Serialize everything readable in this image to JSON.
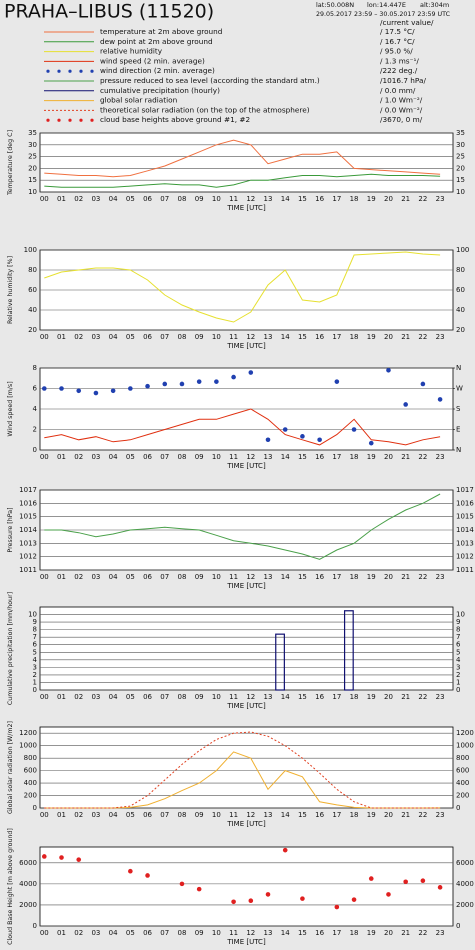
{
  "header": {
    "title": "PRAHA–LIBUS (11520)",
    "lat": "lat:50.008N",
    "lon": "lon:14.447E",
    "alt": "alt:304m",
    "period": "29.05.2017 23:59 – 30.05.2017 23:59 UTC",
    "current_header": "/current value/"
  },
  "chart_data": [
    {
      "type": "line",
      "ylabel": "Temperature [deg C]",
      "xlabel": "TIME [UTC]",
      "categories": [
        "00",
        "01",
        "02",
        "03",
        "04",
        "05",
        "06",
        "07",
        "08",
        "09",
        "10",
        "11",
        "12",
        "13",
        "14",
        "15",
        "16",
        "17",
        "18",
        "19",
        "20",
        "21",
        "22",
        "23"
      ],
      "ylim": [
        10,
        35
      ],
      "yticks": [
        10,
        15,
        20,
        25,
        30,
        35
      ],
      "grid": true,
      "series": [
        {
          "name": "temperature at 2m above ground",
          "color": "#f07040",
          "current": {
            "value": 17.5,
            "label": "/ 17.5 °C/"
          },
          "values": [
            18,
            17.5,
            17,
            17,
            16.5,
            17,
            19,
            21,
            24,
            27,
            30,
            32,
            30,
            22,
            24,
            26,
            26,
            27,
            20,
            19.5,
            19,
            18.5,
            18,
            17.5
          ]
        },
        {
          "name": "dew point at 2m above ground",
          "color": "#3a9a3a",
          "current": {
            "value": 16.7,
            "label": "/ 16.7 °C/"
          },
          "values": [
            12.5,
            12,
            12,
            12,
            12,
            12.5,
            13,
            13.5,
            13,
            13,
            12,
            13,
            15,
            15,
            16,
            17,
            17,
            16.5,
            17,
            17.5,
            17,
            17,
            17,
            16.7
          ]
        }
      ]
    },
    {
      "type": "line",
      "ylabel": "Relative humidity [%]",
      "xlabel": "TIME [UTC]",
      "categories": [
        "00",
        "01",
        "02",
        "03",
        "04",
        "05",
        "06",
        "07",
        "08",
        "09",
        "10",
        "11",
        "12",
        "13",
        "14",
        "15",
        "16",
        "17",
        "18",
        "19",
        "20",
        "21",
        "22",
        "23"
      ],
      "ylim": [
        20,
        100
      ],
      "yticks": [
        20,
        40,
        60,
        80,
        100
      ],
      "grid": true,
      "series": [
        {
          "name": "relative humidity",
          "color": "#e6e030",
          "current": {
            "value": 95.0,
            "label": "/ 95.0 %/"
          },
          "values": [
            72,
            78,
            80,
            82,
            82,
            80,
            70,
            55,
            45,
            38,
            32,
            28,
            38,
            65,
            80,
            50,
            48,
            55,
            95,
            96,
            97,
            98,
            96,
            95
          ]
        }
      ]
    },
    {
      "type": "line",
      "ylabel": "Wind speed [m/s]",
      "xlabel": "TIME [UTC]",
      "categories": [
        "00",
        "01",
        "02",
        "03",
        "04",
        "05",
        "06",
        "07",
        "08",
        "09",
        "10",
        "11",
        "12",
        "13",
        "14",
        "15",
        "16",
        "17",
        "18",
        "19",
        "20",
        "21",
        "22",
        "23"
      ],
      "ylim": [
        0,
        8
      ],
      "yticks": [
        0,
        2,
        4,
        6,
        8
      ],
      "grid": true,
      "y2lim": [
        0,
        360
      ],
      "y2ticks": [
        {
          "value": 0,
          "label": "N"
        },
        {
          "value": 90,
          "label": "E"
        },
        {
          "value": 180,
          "label": "S"
        },
        {
          "value": 270,
          "label": "W"
        },
        {
          "value": 360,
          "label": "N"
        }
      ],
      "series": [
        {
          "name": "wind speed (2 min. average)",
          "color": "#e03010",
          "current": {
            "value": 1.3,
            "label": "/ 1.3 ms⁻¹/"
          },
          "values": [
            1.2,
            1.5,
            1,
            1.3,
            0.8,
            1,
            1.5,
            2,
            2.5,
            3,
            3,
            3.5,
            4,
            3,
            1.5,
            1,
            0.5,
            1.5,
            3,
            1,
            0.8,
            0.5,
            1,
            1.3
          ]
        },
        {
          "name": "wind direction (2 min. average)",
          "color": "#2040b0",
          "axis": "y2",
          "marker": "dot",
          "current": {
            "value": 222,
            "label": "/222 deg./"
          },
          "values": [
            270,
            270,
            260,
            250,
            260,
            270,
            280,
            290,
            290,
            300,
            300,
            320,
            340,
            45,
            90,
            60,
            45,
            300,
            90,
            30,
            350,
            200,
            290,
            222
          ]
        }
      ]
    },
    {
      "type": "line",
      "ylabel": "Pressure [hPa]",
      "xlabel": "TIME [UTC]",
      "categories": [
        "00",
        "01",
        "02",
        "03",
        "04",
        "05",
        "06",
        "07",
        "08",
        "09",
        "10",
        "11",
        "12",
        "13",
        "14",
        "15",
        "16",
        "17",
        "18",
        "19",
        "20",
        "21",
        "22",
        "23"
      ],
      "ylim": [
        1011,
        1017
      ],
      "yticks": [
        1011,
        1012,
        1013,
        1014,
        1015,
        1016,
        1017
      ],
      "grid": true,
      "series": [
        {
          "name": "pressure reduced to sea level (according the standard atm.)",
          "color": "#4aa04a",
          "current": {
            "value": 1016.7,
            "label": "/1016.7 hPa/"
          },
          "values": [
            1014,
            1014,
            1013.8,
            1013.5,
            1013.7,
            1014,
            1014.1,
            1014.2,
            1014.1,
            1014,
            1013.6,
            1013.2,
            1013,
            1012.8,
            1012.5,
            1012.2,
            1011.8,
            1012.5,
            1013,
            1014,
            1014.8,
            1015.5,
            1016,
            1016.7
          ]
        }
      ]
    },
    {
      "type": "bar",
      "ylabel": "Cumulative precipitation [mm/hour]",
      "xlabel": "TIME [UTC]",
      "categories": [
        "00",
        "01",
        "02",
        "03",
        "04",
        "05",
        "06",
        "07",
        "08",
        "09",
        "10",
        "11",
        "12",
        "13",
        "14",
        "15",
        "16",
        "17",
        "18",
        "19",
        "20",
        "21",
        "22",
        "23"
      ],
      "ylim": [
        0,
        11
      ],
      "yticks": [
        0,
        1,
        2,
        3,
        4,
        5,
        6,
        7,
        8,
        9,
        10
      ],
      "grid": true,
      "series": [
        {
          "name": "cumulative precipitation (hourly)",
          "color": "#101070",
          "current": {
            "value": 0.0,
            "label": "/ 0.0 mm/"
          },
          "values": [
            0,
            0,
            0,
            0,
            0,
            0,
            0,
            0,
            0,
            0,
            0,
            0,
            0,
            7.4,
            0,
            0,
            0,
            10.5,
            0,
            0,
            0,
            0,
            0,
            0
          ]
        }
      ]
    },
    {
      "type": "line",
      "ylabel": "Global solar radiation [W/m2]",
      "xlabel": "TIME [UTC]",
      "categories": [
        "00",
        "01",
        "02",
        "03",
        "04",
        "05",
        "06",
        "07",
        "08",
        "09",
        "10",
        "11",
        "12",
        "13",
        "14",
        "15",
        "16",
        "17",
        "18",
        "19",
        "20",
        "21",
        "22",
        "23"
      ],
      "ylim": [
        0,
        1300
      ],
      "yticks": [
        0,
        200,
        400,
        600,
        800,
        1000,
        1200
      ],
      "grid": true,
      "series": [
        {
          "name": "global solar radiation",
          "color": "#f0b030",
          "current": {
            "value": 1.0,
            "label": "/ 1.0 Wm⁻²/"
          },
          "values": [
            0,
            0,
            0,
            0,
            0,
            10,
            50,
            150,
            280,
            400,
            600,
            900,
            800,
            300,
            600,
            500,
            100,
            50,
            10,
            0,
            0,
            0,
            0,
            1
          ]
        },
        {
          "name": "theoretical solar radiation (on the top of the atmosphere)",
          "color": "#e04020",
          "style": "dotted",
          "current": {
            "value": 0.0,
            "label": "/ 0.0 Wm⁻²/"
          },
          "values": [
            0,
            0,
            0,
            0,
            0,
            30,
            200,
            450,
            700,
            920,
            1100,
            1200,
            1220,
            1150,
            1000,
            800,
            560,
            300,
            100,
            0,
            0,
            0,
            0,
            0
          ]
        }
      ]
    },
    {
      "type": "scatter",
      "ylabel": "Cloud Base Height [m above ground]",
      "xlabel": "TIME [UTC]",
      "categories": [
        "00",
        "01",
        "02",
        "03",
        "04",
        "05",
        "06",
        "07",
        "08",
        "09",
        "10",
        "11",
        "12",
        "13",
        "14",
        "15",
        "16",
        "17",
        "18",
        "19",
        "20",
        "21",
        "22",
        "23"
      ],
      "ylim": [
        0,
        7500
      ],
      "yticks": [
        0,
        2000,
        4000,
        6000
      ],
      "grid": true,
      "series": [
        {
          "name": "cloud base heights above ground #1, #2",
          "color": "#e02020",
          "marker": "dot",
          "current": {
            "value": 3670,
            "label": "/3670,    0 m/"
          },
          "values": [
            6600,
            6500,
            6300,
            null,
            null,
            5200,
            4800,
            null,
            4000,
            3500,
            null,
            2300,
            2400,
            3000,
            7200,
            2600,
            null,
            1800,
            2500,
            4500,
            3000,
            4200,
            4300,
            3670
          ]
        }
      ]
    }
  ]
}
